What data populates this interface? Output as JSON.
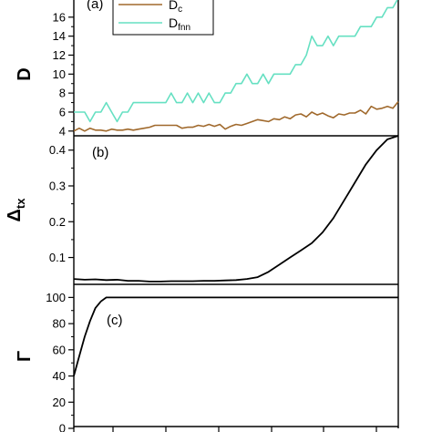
{
  "chart_data": [
    {
      "type": "line",
      "panel": "(a)",
      "ylabel": "D",
      "ylim": [
        3.5,
        18
      ],
      "yticks": [
        4,
        6,
        8,
        10,
        12,
        14,
        16
      ],
      "xlim": [
        0,
        60
      ],
      "legend_position": "top-left",
      "series": [
        {
          "name": "D",
          "name_sub": "c",
          "color": "#a0692c",
          "x": [
            0,
            1,
            2,
            3,
            4,
            5,
            6,
            7,
            8,
            9,
            10,
            11,
            12,
            13,
            14,
            15,
            16,
            17,
            18,
            19,
            20,
            21,
            22,
            23,
            24,
            25,
            26,
            27,
            28,
            29,
            30,
            31,
            32,
            33,
            34,
            35,
            36,
            37,
            38,
            39,
            40,
            41,
            42,
            43,
            44,
            45,
            46,
            47,
            48,
            49,
            50,
            51,
            52,
            53,
            54,
            55,
            56,
            57,
            58,
            59,
            60
          ],
          "y": [
            4,
            4.3,
            4,
            4.3,
            4.1,
            4.1,
            4,
            4.2,
            4.1,
            4.1,
            4.2,
            4.1,
            4.2,
            4.3,
            4.4,
            4.6,
            4.6,
            4.6,
            4.6,
            4.6,
            4.3,
            4.4,
            4.4,
            4.6,
            4.5,
            4.7,
            4.5,
            4.7,
            4.2,
            4.5,
            4.7,
            4.6,
            4.8,
            5,
            5.2,
            5.1,
            5,
            5.3,
            5.2,
            5.5,
            5.3,
            5.7,
            5.8,
            5.5,
            6,
            5.7,
            5.9,
            5.6,
            5.4,
            5.8,
            5.7,
            5.9,
            5.9,
            6.2,
            5.8,
            6.6,
            6.3,
            6.4,
            6.6,
            6.4,
            7.1
          ]
        },
        {
          "name": "D",
          "name_sub": "fnn",
          "color": "#66e0c2",
          "x": [
            0,
            1,
            2,
            3,
            4,
            5,
            6,
            7,
            8,
            9,
            10,
            11,
            12,
            13,
            14,
            15,
            16,
            17,
            18,
            19,
            20,
            21,
            22,
            23,
            24,
            25,
            26,
            27,
            28,
            29,
            30,
            31,
            32,
            33,
            34,
            35,
            36,
            37,
            38,
            39,
            40,
            41,
            42,
            43,
            44,
            45,
            46,
            47,
            48,
            49,
            50,
            51,
            52,
            53,
            54,
            55,
            56,
            57,
            58,
            59,
            60
          ],
          "y": [
            6,
            6,
            6,
            5,
            6,
            6,
            7,
            6,
            5,
            6,
            6,
            7,
            7,
            7,
            7,
            7,
            7,
            7,
            8,
            7,
            7,
            8,
            7,
            8,
            7,
            8,
            7,
            7,
            8,
            8,
            9,
            9,
            10,
            9,
            9,
            10,
            9,
            10,
            10,
            10,
            10,
            11,
            11,
            12,
            14,
            13,
            13,
            14,
            13,
            14,
            14,
            14,
            14,
            15,
            15,
            15,
            16,
            16,
            17,
            17,
            18
          ]
        }
      ]
    },
    {
      "type": "line",
      "panel": "(b)",
      "ylabel": "Δ",
      "ylabel_sub": "tx",
      "ylim": [
        0.025,
        0.44
      ],
      "yticks": [
        0.1,
        0.2,
        0.3,
        0.4
      ],
      "ytick_labels": [
        "0.1",
        "0.2",
        "0.3",
        "0.4"
      ],
      "xlim": [
        0,
        60
      ],
      "series": [
        {
          "color": "#000000",
          "x": [
            0,
            2,
            4,
            6,
            8,
            10,
            12,
            14,
            16,
            18,
            20,
            22,
            24,
            26,
            28,
            30,
            32,
            34,
            36,
            38,
            40,
            42,
            44,
            46,
            48,
            50,
            52,
            54,
            56,
            58,
            60
          ],
          "y": [
            0.04,
            0.038,
            0.039,
            0.037,
            0.038,
            0.035,
            0.035,
            0.033,
            0.033,
            0.034,
            0.034,
            0.034,
            0.035,
            0.035,
            0.036,
            0.037,
            0.04,
            0.045,
            0.06,
            0.08,
            0.1,
            0.12,
            0.14,
            0.17,
            0.21,
            0.26,
            0.31,
            0.36,
            0.4,
            0.43,
            0.44
          ]
        }
      ]
    },
    {
      "type": "line",
      "panel": "(c)",
      "ylabel": "Γ",
      "ylim": [
        0,
        110
      ],
      "yticks": [
        0,
        20,
        40,
        60,
        80,
        100
      ],
      "xlim": [
        0,
        60
      ],
      "series": [
        {
          "color": "#000000",
          "x": [
            0,
            1,
            2,
            3,
            4,
            5,
            6,
            7,
            8,
            9,
            10,
            20,
            30,
            40,
            50,
            60
          ],
          "y": [
            40,
            55,
            70,
            82,
            92,
            97,
            100,
            100,
            100,
            100,
            100,
            100,
            100,
            100,
            100,
            100
          ]
        }
      ]
    }
  ]
}
